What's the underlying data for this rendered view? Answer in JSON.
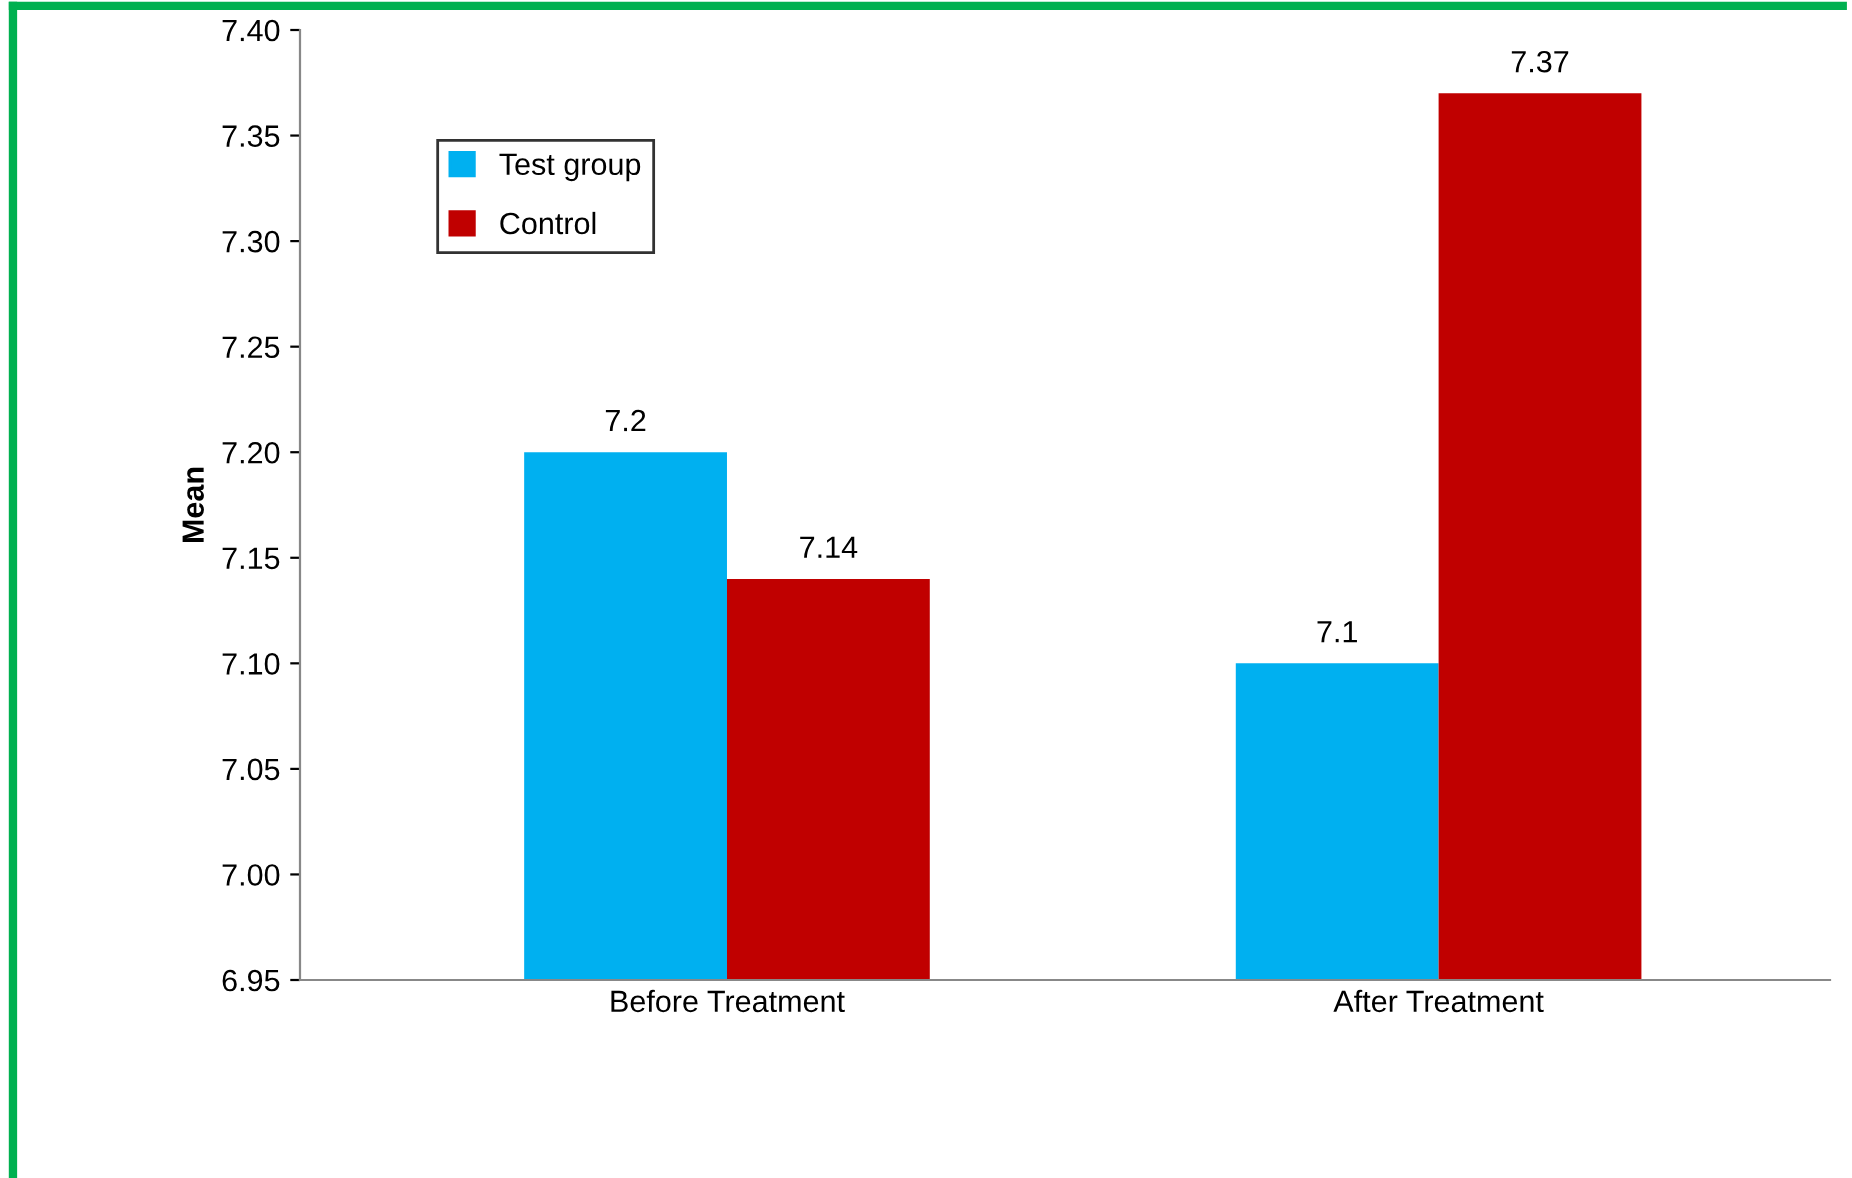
{
  "chart_data": {
    "type": "bar",
    "ylabel": "Mean",
    "categories": [
      "Before Treatment",
      "After Treatment"
    ],
    "series": [
      {
        "name": "Test group",
        "color": "#00b0f0",
        "values": [
          7.2,
          7.1
        ]
      },
      {
        "name": "Control",
        "color": "#c00000",
        "values": [
          7.14,
          7.37
        ]
      }
    ],
    "ylim": [
      6.95,
      7.4
    ],
    "yticks": [
      {
        "value": 6.95,
        "label": "6.95"
      },
      {
        "value": 7.0,
        "label": "7.00"
      },
      {
        "value": 7.05,
        "label": "7.05"
      },
      {
        "value": 7.1,
        "label": "7.10"
      },
      {
        "value": 7.15,
        "label": "7.15"
      },
      {
        "value": 7.2,
        "label": "7.20"
      },
      {
        "value": 7.25,
        "label": "7.25"
      },
      {
        "value": 7.3,
        "label": "7.30"
      },
      {
        "value": 7.35,
        "label": "7.35"
      },
      {
        "value": 7.4,
        "label": "7.40"
      }
    ],
    "data_labels": true,
    "legend": "top left",
    "grid": false
  }
}
